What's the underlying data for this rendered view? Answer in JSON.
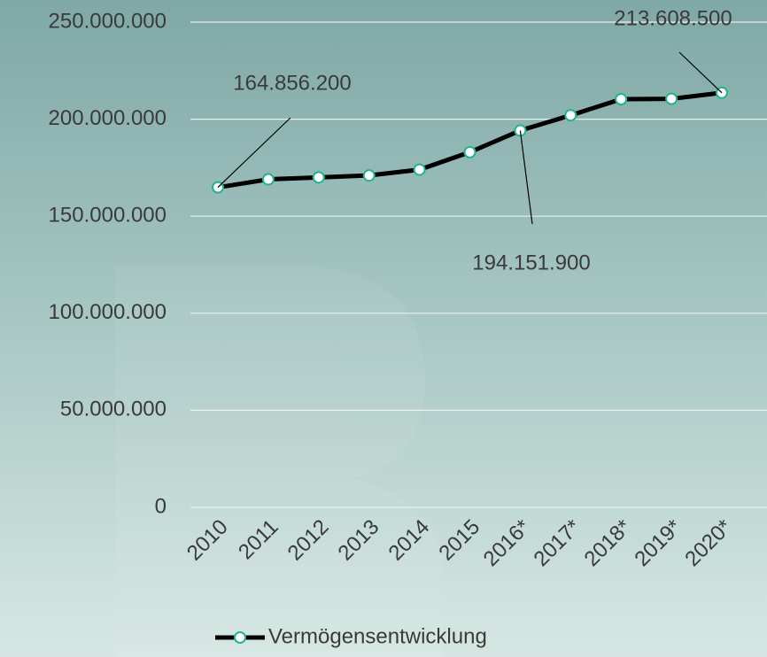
{
  "chart_data": {
    "type": "line",
    "categories": [
      "2010",
      "2011",
      "2012",
      "2013",
      "2014",
      "2015",
      "2016*",
      "2017*",
      "2018*",
      "2019*",
      "2020*"
    ],
    "series": [
      {
        "name": "Vermögensentwicklung",
        "color": "#000000",
        "marker_color": "#1fb58f",
        "values": [
          164856200,
          169000000,
          170000000,
          171000000,
          174000000,
          183000000,
          194151900,
          202000000,
          210300000,
          210500000,
          213608500
        ],
        "value_labels": [
          "164.856.200",
          null,
          null,
          null,
          null,
          null,
          "194.151.900",
          null,
          null,
          null,
          "213.608.500"
        ]
      }
    ],
    "ylim": [
      0,
      250000000
    ],
    "yticks": [
      0,
      {
        "value": 50000000,
        "label": "50.000.000"
      },
      {
        "value": 100000000,
        "label": "100.000.000"
      },
      {
        "value": 150000000,
        "label": "150.000.000"
      },
      {
        "value": 200000000,
        "label": "200.000.000"
      },
      {
        "value": 250000000,
        "label": "250.000.000"
      }
    ],
    "grid": true,
    "legend": "bottom"
  }
}
